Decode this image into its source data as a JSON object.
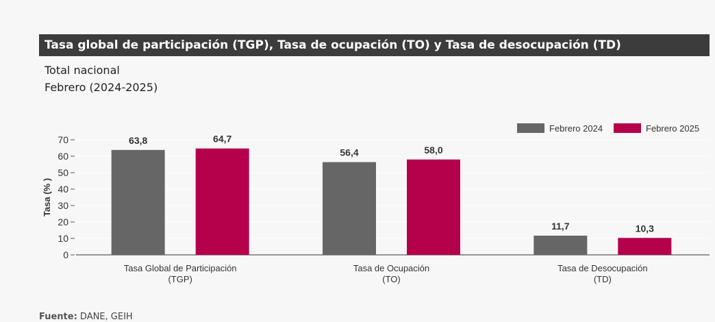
{
  "header": {
    "title": "Tasa global de participación (TGP), Tasa de ocupación (TO) y Tasa de desocupación (TD)",
    "subtitle1": "Total nacional",
    "subtitle2": "Febrero (2024-2025)"
  },
  "source": {
    "label": "Fuente:",
    "text": " DANE, GEIH"
  },
  "chart_data": {
    "type": "bar",
    "categories": [
      [
        "Tasa Global de Participación",
        "(TGP)"
      ],
      [
        "Tasa de Ocupación",
        "(TO)"
      ],
      [
        "Tasa de Desocupación",
        "(TD)"
      ]
    ],
    "series": [
      {
        "name": "Febrero 2024",
        "color": "#666666",
        "values": [
          63.8,
          56.4,
          11.7
        ],
        "labels": [
          "63,8",
          "56,4",
          "11,7"
        ]
      },
      {
        "name": "Febrero 2025",
        "color": "#b5004b",
        "values": [
          64.7,
          58.0,
          10.3
        ],
        "labels": [
          "64,7",
          "58,0",
          "10,3"
        ]
      }
    ],
    "ylabel": "Tasa (% )",
    "ylim": [
      0,
      70
    ],
    "yticks": [
      0,
      10,
      20,
      30,
      40,
      50,
      60,
      70
    ],
    "grid": true,
    "legend": "top-right"
  }
}
